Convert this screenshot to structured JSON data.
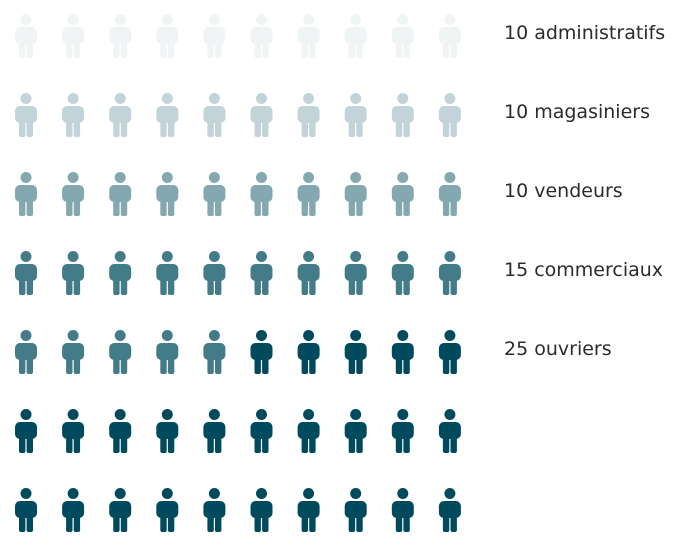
{
  "chart_data": {
    "type": "pictogram",
    "unit": "person",
    "icons_per_row": 10,
    "series": [
      {
        "label": "10 administratifs",
        "count": 10,
        "color": "#f1f4f5"
      },
      {
        "label": "10 magasiniers",
        "count": 10,
        "color": "#c2d4da"
      },
      {
        "label": "10 vendeurs",
        "count": 10,
        "color": "#84a8b0"
      },
      {
        "label": "15 commerciaux",
        "count": 15,
        "color": "#437c88"
      },
      {
        "label": "25 ouvriers",
        "count": 25,
        "color": "#004a5e"
      }
    ]
  }
}
